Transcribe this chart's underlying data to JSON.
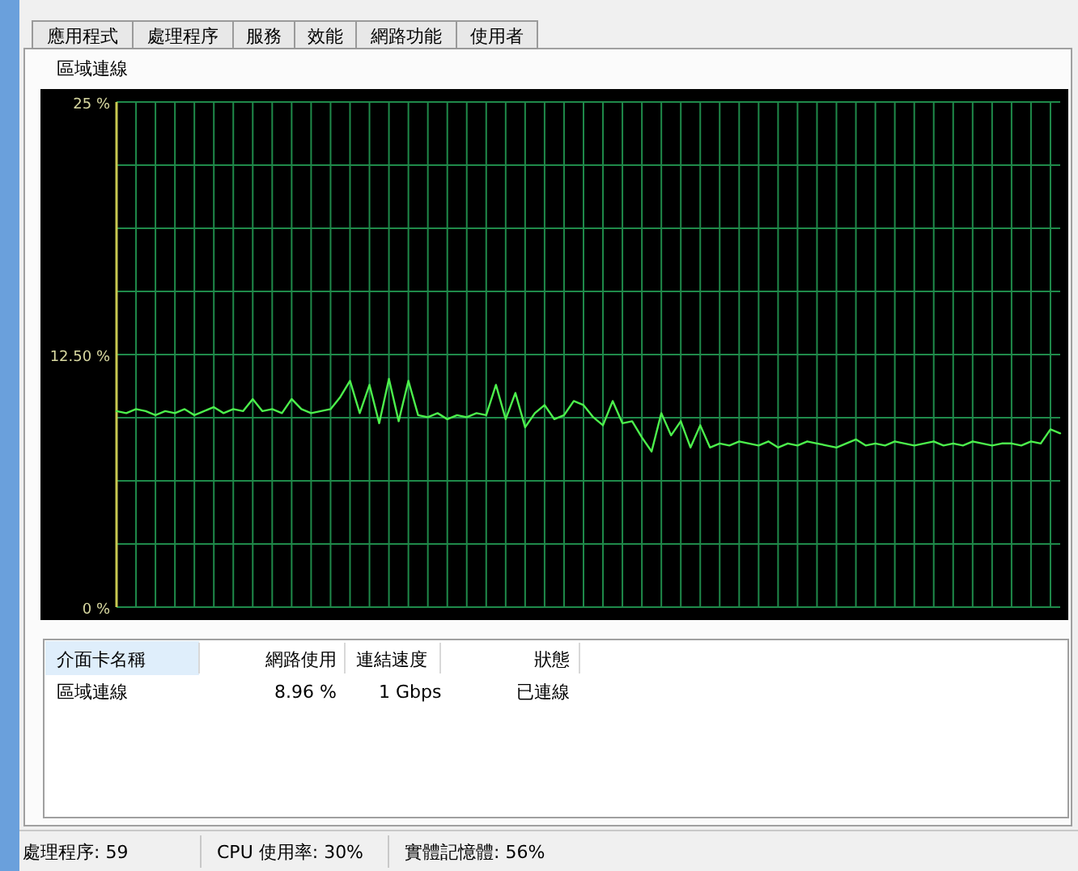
{
  "chart_data": [
    {
      "type": "other",
      "annotations": [
        "應用程式",
        "處理程序",
        "服務",
        "效能",
        "網路功能",
        "使用者"
      ]
    },
    {
      "type": "line",
      "title": "區域連線",
      "grid": true,
      "tick_labels": "y",
      "ylim": [
        0,
        25
      ],
      "yticks": [
        {
          "value": 0,
          "label": "0 %"
        },
        {
          "value": 3.125,
          "label": null
        },
        {
          "value": 6.25,
          "label": null
        },
        {
          "value": 9.375,
          "label": null
        },
        {
          "value": 12.5,
          "label": "12.50 %"
        },
        {
          "value": 15.625,
          "label": null
        },
        {
          "value": 18.75,
          "label": null
        },
        {
          "value": 21.875,
          "label": null
        },
        {
          "value": 25,
          "label": "25 %"
        }
      ],
      "categories": [
        null,
        null,
        null,
        null,
        null,
        null,
        null,
        null,
        null,
        null,
        null,
        null,
        null,
        null,
        null,
        null,
        null,
        null,
        null,
        null,
        null,
        null,
        null,
        null,
        null,
        null,
        null,
        null,
        null,
        null,
        null,
        null,
        null,
        null,
        null,
        null,
        null,
        null,
        null,
        null,
        null,
        null,
        null,
        null,
        null,
        null,
        null,
        null,
        null,
        null,
        null,
        null,
        null,
        null,
        null,
        null,
        null,
        null,
        null,
        null,
        null,
        null,
        null,
        null,
        null,
        null,
        null,
        null,
        null,
        null,
        null,
        null,
        null,
        null,
        null,
        null,
        null,
        null,
        null,
        null,
        null,
        null,
        null,
        null,
        null,
        null,
        null,
        null,
        null,
        null,
        null,
        null,
        null,
        null,
        null,
        null,
        null,
        null
      ],
      "series": [
        {
          "color": "#4cf04c",
          "values": [
            9.7,
            9.6,
            9.8,
            9.7,
            9.5,
            9.7,
            9.6,
            9.8,
            9.5,
            9.7,
            9.9,
            9.6,
            9.8,
            9.7,
            10.3,
            9.7,
            9.8,
            9.6,
            10.3,
            9.8,
            9.6,
            9.7,
            9.8,
            10.4,
            11.2,
            9.6,
            11.0,
            9.1,
            11.3,
            9.2,
            11.2,
            9.5,
            9.4,
            9.6,
            9.3,
            9.5,
            9.4,
            9.6,
            9.5,
            11.0,
            9.3,
            10.6,
            8.9,
            9.6,
            10.0,
            9.3,
            9.5,
            10.2,
            10.0,
            9.4,
            9.0,
            10.2,
            9.1,
            9.2,
            8.4,
            7.7,
            9.6,
            8.5,
            9.2,
            7.9,
            9.0,
            7.9,
            8.1,
            8.0,
            8.2,
            8.1,
            8.0,
            8.2,
            7.9,
            8.1,
            8.0,
            8.2,
            8.1,
            8.0,
            7.9,
            8.1,
            8.3,
            8.0,
            8.1,
            8.0,
            8.2,
            8.1,
            8.0,
            8.1,
            8.2,
            8.0,
            8.1,
            8.0,
            8.2,
            8.1,
            8.0,
            8.1,
            8.1,
            8.0,
            8.2,
            8.1,
            8.8,
            8.6
          ]
        }
      ]
    },
    {
      "type": "other",
      "categories": [
        "介面卡名稱",
        "網路使用",
        "連結速度",
        "狀態"
      ],
      "annotations": [
        "區域連線",
        "8.96 %",
        "1 Gbps",
        "已連線"
      ]
    },
    {
      "type": "other",
      "annotations": [
        "處理程序: 59",
        "CPU 使用率: 30%",
        "實體記憶體: 56%"
      ]
    }
  ]
}
